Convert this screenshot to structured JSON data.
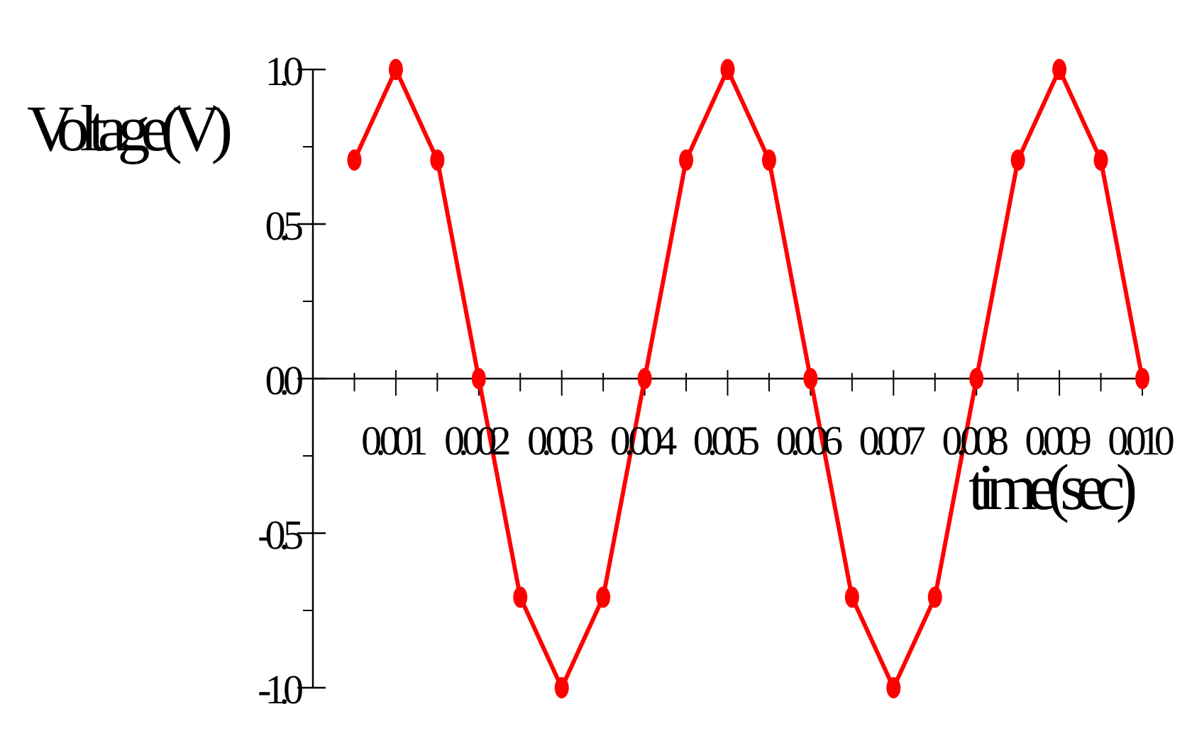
{
  "chart_data": {
    "type": "line",
    "title": "",
    "xlabel": "time(sec)",
    "ylabel": "Voltage(V)",
    "xlim": [
      0,
      0.01
    ],
    "ylim": [
      -1.0,
      1.0
    ],
    "grid": false,
    "legend": "none",
    "xticks": [
      "0.001",
      "0.002",
      "0.003",
      "0.004",
      "0.005",
      "0.006",
      "0.007",
      "0.008",
      "0.009",
      "0.010"
    ],
    "xtick_values": [
      0.001,
      0.002,
      0.003,
      0.004,
      0.005,
      0.006,
      0.007,
      0.008,
      0.009,
      0.01
    ],
    "yticks": [
      "1.0",
      "0.5",
      "0.0",
      "-0.5",
      "-1.0"
    ],
    "ytick_values": [
      1.0,
      0.5,
      0.0,
      -0.5,
      -1.0
    ],
    "series": [
      {
        "color": "#ff0000",
        "marker": "circle",
        "x": [
          0.0005,
          0.001,
          0.0015,
          0.002,
          0.0025,
          0.003,
          0.0035,
          0.004,
          0.0045,
          0.005,
          0.0055,
          0.006,
          0.0065,
          0.007,
          0.0075,
          0.008,
          0.0085,
          0.009,
          0.0095,
          0.01
        ],
        "y": [
          0.707,
          1.0,
          0.707,
          0.0,
          -0.707,
          -1.0,
          -0.707,
          0.0,
          0.707,
          1.0,
          0.707,
          0.0,
          -0.707,
          -1.0,
          -0.707,
          0.0,
          0.707,
          1.0,
          0.707,
          0.0
        ]
      }
    ]
  }
}
